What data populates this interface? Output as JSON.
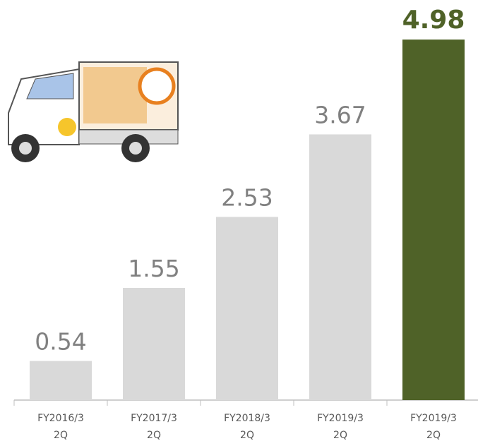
{
  "chart_data": {
    "type": "bar",
    "categories": [
      [
        "FY2016/3",
        "2Q"
      ],
      [
        "FY2017/3",
        "2Q"
      ],
      [
        "FY2018/3",
        "2Q"
      ],
      [
        "FY2019/3",
        "2Q"
      ],
      [
        "FY2019/3",
        "2Q"
      ]
    ],
    "values": [
      0.54,
      1.55,
      2.53,
      3.67,
      4.98
    ],
    "colors": [
      "#d9d9d9",
      "#d9d9d9",
      "#d9d9d9",
      "#d9d9d9",
      "#4f6228"
    ],
    "ylim": [
      0,
      5
    ]
  }
}
